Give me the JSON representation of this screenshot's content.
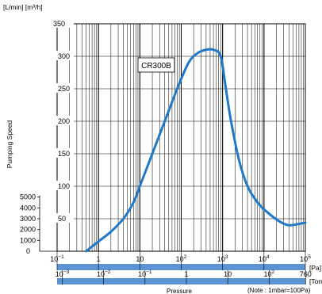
{
  "chart_data": {
    "type": "line",
    "ylabel": "Pumping Speed",
    "ylabel_units": "[L/min]  [m³/h]",
    "xlabel": "Pressure",
    "note": "(Note : 1mbar=100Pa)",
    "series_label": "CR300B",
    "x_scale": "log",
    "xlim_pa": [
      0.1,
      100000
    ],
    "ylim_m3h": [
      0,
      350
    ],
    "grid": true,
    "y_ticks_m3h": [
      {
        "value": 0,
        "label": "0"
      },
      {
        "value": 50,
        "label": "50"
      },
      {
        "value": 100,
        "label": "100"
      },
      {
        "value": 150,
        "label": "150"
      },
      {
        "value": 200,
        "label": "200"
      },
      {
        "value": 250,
        "label": "250"
      },
      {
        "value": 300,
        "label": "300"
      },
      {
        "value": 350,
        "label": "350"
      }
    ],
    "y_ticks_lmin": [
      {
        "value": 1000,
        "label": "1000"
      },
      {
        "value": 2000,
        "label": "2000"
      },
      {
        "value": 3000,
        "label": "3000"
      },
      {
        "value": 4000,
        "label": "4000"
      },
      {
        "value": 5000,
        "label": "5000"
      }
    ],
    "x_ticks_pa": [
      {
        "value": 0.1,
        "base": "10",
        "exp": "−1"
      },
      {
        "value": 1,
        "base": "1",
        "exp": ""
      },
      {
        "value": 10,
        "base": "10",
        "exp": ""
      },
      {
        "value": 100,
        "base": "10",
        "exp": "2"
      },
      {
        "value": 1000,
        "base": "10",
        "exp": "3"
      },
      {
        "value": 10000,
        "base": "10",
        "exp": "4"
      },
      {
        "value": 100000,
        "base": "10",
        "exp": "5"
      }
    ],
    "x_unit_pa": "[Pa]",
    "x_ticks_torr": [
      {
        "value_pa": 0.1333,
        "base": "10",
        "exp": "−3"
      },
      {
        "value_pa": 1.333,
        "base": "10",
        "exp": "−2"
      },
      {
        "value_pa": 13.33,
        "base": "10",
        "exp": "−1"
      },
      {
        "value_pa": 133.3,
        "base": "1",
        "exp": ""
      },
      {
        "value_pa": 1333,
        "base": "10",
        "exp": ""
      },
      {
        "value_pa": 13330,
        "base": "10",
        "exp": "2"
      },
      {
        "value_pa": 101325,
        "base": "760",
        "exp": ""
      }
    ],
    "x_unit_torr": "[Torr]",
    "series": [
      {
        "name": "CR300B",
        "x_pa": [
          0.5,
          1,
          2,
          4,
          7,
          10,
          20,
          40,
          80,
          150,
          250,
          400,
          600,
          900,
          1200,
          1600,
          2500,
          4000,
          7000,
          12000,
          25000,
          40000,
          70000,
          100000
        ],
        "y_m3h": [
          0,
          15,
          30,
          50,
          75,
          100,
          150,
          200,
          250,
          290,
          305,
          310,
          310,
          300,
          250,
          200,
          140,
          100,
          75,
          60,
          45,
          40,
          42,
          44
        ]
      }
    ],
    "colors": {
      "line": "#1f78c8",
      "band": "#5b93d4",
      "grid": "#000000"
    }
  }
}
